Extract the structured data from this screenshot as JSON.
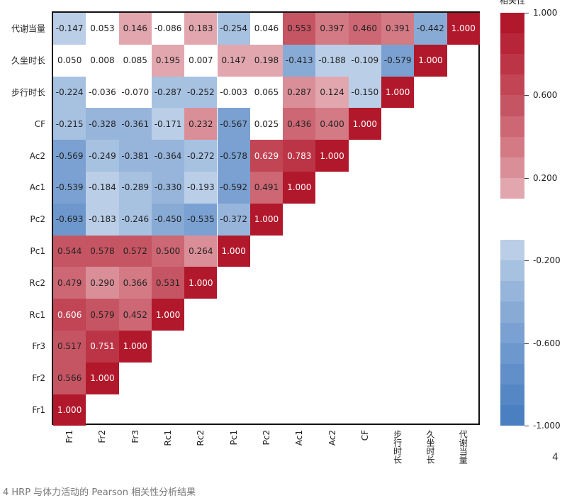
{
  "chart_data": {
    "type": "heatmap",
    "title": "",
    "colorbar_label": "相关性",
    "colorbar_ticks": [
      "1.000",
      "0.600",
      "0.200",
      "-0.200",
      "-0.600",
      "-1.000"
    ],
    "vrange": [
      -1,
      1
    ],
    "row_labels": [
      "代谢当量",
      "久坐时长",
      "步行时长",
      "CF",
      "Ac2",
      "Ac1",
      "Pc2",
      "Pc1",
      "Rc2",
      "Rc1",
      "Fr3",
      "Fr2",
      "Fr1"
    ],
    "col_labels": [
      "Fr1",
      "Fr2",
      "Fr3",
      "Rc1",
      "Rc2",
      "Pc1",
      "Pc2",
      "Ac1",
      "Ac2",
      "CF",
      "步行时长",
      "久坐时长",
      "代谢当量"
    ],
    "values": [
      [
        "-0.147",
        "0.053",
        "0.146",
        "-0.086",
        "0.183",
        "-0.254",
        "0.046",
        "0.553",
        "0.397",
        "0.460",
        "0.391",
        "-0.442",
        "1.000"
      ],
      [
        "0.050",
        "0.008",
        "0.085",
        "0.195",
        "0.007",
        "0.147",
        "0.198",
        "-0.413",
        "-0.188",
        "-0.109",
        "-0.579",
        "1.000"
      ],
      [
        "-0.224",
        "-0.036",
        "-0.070",
        "-0.287",
        "-0.252",
        "-0.003",
        "0.065",
        "0.287",
        "0.124",
        "-0.150",
        "1.000"
      ],
      [
        "-0.215",
        "-0.328",
        "-0.361",
        "-0.171",
        "0.232",
        "-0.567",
        "0.025",
        "0.436",
        "0.400",
        "1.000"
      ],
      [
        "-0.569",
        "-0.249",
        "-0.381",
        "-0.364",
        "-0.272",
        "-0.578",
        "0.629",
        "0.783",
        "1.000"
      ],
      [
        "-0.539",
        "-0.184",
        "-0.289",
        "-0.330",
        "-0.193",
        "-0.592",
        "0.491",
        "1.000"
      ],
      [
        "-0.693",
        "-0.183",
        "-0.246",
        "-0.450",
        "-0.535",
        "-0.372",
        "1.000"
      ],
      [
        "0.544",
        "0.578",
        "0.572",
        "0.500",
        "0.264",
        "1.000"
      ],
      [
        "0.479",
        "0.290",
        "0.366",
        "0.531",
        "1.000"
      ],
      [
        "0.606",
        "0.579",
        "0.452",
        "1.000"
      ],
      [
        "0.517",
        "0.751",
        "1.000"
      ],
      [
        "0.566",
        "1.000"
      ],
      [
        "1.000"
      ]
    ]
  },
  "colors": {
    "pos": "#b2182b",
    "neg": "#4a7fc1",
    "mid": "#ffffff"
  },
  "figure_number": "4",
  "caption": "4 HRP 与体力活动的 Pearson 相关性分析结果"
}
